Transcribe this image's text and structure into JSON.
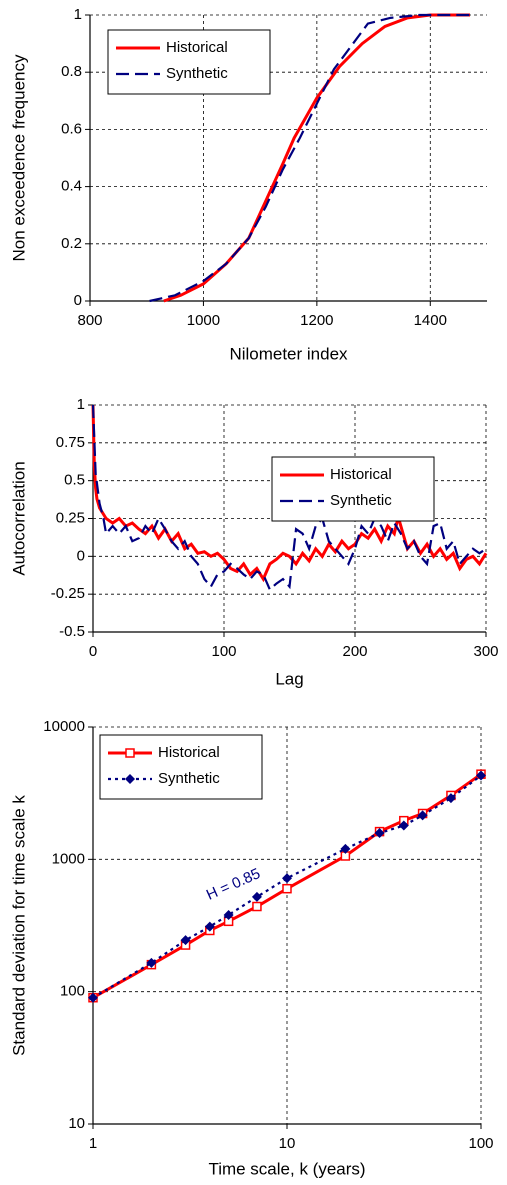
{
  "chart_data": [
    {
      "type": "line",
      "xlabel": "Nilometer index",
      "ylabel": "Non exceedence frequency",
      "xlim": [
        800,
        1500
      ],
      "xticks": [
        800,
        1000,
        1200,
        1400
      ],
      "ylim": [
        0,
        1
      ],
      "yticks": [
        0,
        0.2,
        0.4,
        0.6,
        0.8,
        1
      ],
      "grid": true,
      "legend": "upper left",
      "series": [
        {
          "name": "Historical",
          "color": "#ff0000",
          "line_style": "solid",
          "x": [
            930,
            960,
            1000,
            1040,
            1080,
            1110,
            1140,
            1160,
            1200,
            1240,
            1280,
            1320,
            1360,
            1400,
            1470
          ],
          "values": [
            0,
            0.02,
            0.06,
            0.13,
            0.22,
            0.35,
            0.48,
            0.57,
            0.71,
            0.82,
            0.9,
            0.96,
            0.99,
            1,
            1
          ]
        },
        {
          "name": "Synthetic",
          "color": "#000080",
          "line_style": "dashed",
          "x": [
            905,
            950,
            1000,
            1040,
            1080,
            1110,
            1140,
            1170,
            1200,
            1230,
            1260,
            1290,
            1330,
            1380,
            1470
          ],
          "values": [
            0,
            0.02,
            0.07,
            0.13,
            0.22,
            0.33,
            0.46,
            0.57,
            0.69,
            0.81,
            0.89,
            0.97,
            0.99,
            1,
            1
          ]
        }
      ]
    },
    {
      "type": "line",
      "xlabel": "Lag",
      "ylabel": "Autocorrelation",
      "xlim": [
        0,
        300
      ],
      "xticks": [
        0,
        100,
        200,
        300
      ],
      "ylim": [
        -0.5,
        1
      ],
      "yticks": [
        -0.5,
        -0.25,
        0,
        0.25,
        0.5,
        0.75,
        1
      ],
      "grid": true,
      "legend": "upper right",
      "series": [
        {
          "name": "Historical",
          "color": "#ff0000",
          "line_style": "solid",
          "x": [
            0,
            1,
            2,
            3,
            5,
            10,
            15,
            20,
            25,
            30,
            35,
            40,
            45,
            50,
            55,
            60,
            65,
            70,
            75,
            80,
            85,
            90,
            95,
            100,
            105,
            110,
            115,
            120,
            125,
            130,
            135,
            140,
            145,
            150,
            155,
            160,
            165,
            170,
            175,
            180,
            185,
            190,
            195,
            200,
            205,
            210,
            215,
            220,
            225,
            230,
            233,
            235,
            240,
            245,
            250,
            255,
            260,
            265,
            270,
            275,
            280,
            285,
            290,
            295,
            300
          ],
          "values": [
            1,
            0.6,
            0.45,
            0.38,
            0.32,
            0.25,
            0.22,
            0.25,
            0.2,
            0.22,
            0.18,
            0.15,
            0.2,
            0.12,
            0.18,
            0.1,
            0.15,
            0.05,
            0.08,
            0.02,
            0.03,
            0,
            0.02,
            -0.02,
            -0.08,
            -0.1,
            -0.05,
            -0.12,
            -0.08,
            -0.15,
            -0.05,
            -0.02,
            0.02,
            0,
            -0.05,
            0.02,
            -0.03,
            0.05,
            0,
            0.08,
            0.03,
            0.1,
            0.05,
            0.08,
            0.15,
            0.12,
            0.18,
            0.1,
            0.2,
            0.15,
            0.26,
            0.2,
            0.05,
            0.1,
            0.02,
            0.08,
            0,
            0.05,
            -0.02,
            0.02,
            -0.08,
            -0.02,
            0,
            -0.05,
            0.02
          ]
        },
        {
          "name": "Synthetic",
          "color": "#000080",
          "line_style": "dashed",
          "x": [
            0,
            2,
            5,
            8,
            10,
            15,
            20,
            25,
            30,
            35,
            40,
            45,
            50,
            55,
            60,
            65,
            70,
            75,
            80,
            85,
            90,
            95,
            100,
            105,
            110,
            115,
            120,
            125,
            130,
            135,
            140,
            145,
            150,
            155,
            160,
            165,
            170,
            175,
            180,
            185,
            190,
            195,
            200,
            205,
            210,
            215,
            220,
            225,
            230,
            235,
            240,
            245,
            250,
            255,
            260,
            265,
            270,
            275,
            280,
            285,
            290,
            295,
            300
          ],
          "values": [
            1,
            0.55,
            0.35,
            0.25,
            0.15,
            0.2,
            0.15,
            0.2,
            0.1,
            0.12,
            0.2,
            0.15,
            0.25,
            0.18,
            0.1,
            0.05,
            0.1,
            0,
            -0.05,
            -0.15,
            -0.2,
            -0.12,
            -0.1,
            -0.05,
            -0.08,
            -0.12,
            -0.15,
            -0.1,
            -0.12,
            -0.22,
            -0.18,
            -0.15,
            -0.2,
            0.18,
            0.15,
            0.05,
            0.2,
            0.25,
            0.1,
            0.05,
            0,
            -0.05,
            0.05,
            0.2,
            0.15,
            0.25,
            0.2,
            0.1,
            0.22,
            0.15,
            0.05,
            0.1,
            0,
            -0.05,
            0.2,
            0.22,
            0.05,
            0.1,
            -0.05,
            0,
            0.05,
            0.02,
            0.05
          ]
        }
      ]
    },
    {
      "type": "line",
      "xlabel": "Time scale, k (years)",
      "ylabel": "Standard deviation for time scale k",
      "xscale": "log",
      "yscale": "log",
      "xlim": [
        1,
        100
      ],
      "xticks": [
        1,
        10,
        100
      ],
      "ylim": [
        10,
        10000
      ],
      "yticks": [
        10,
        100,
        1000,
        10000
      ],
      "grid": true,
      "legend": "upper left",
      "annotation": "H = 0.85",
      "x": [
        1,
        2,
        3,
        4,
        5,
        7,
        10,
        20,
        30,
        40,
        50,
        70,
        100
      ],
      "series": [
        {
          "name": "Historical",
          "color": "#ff0000",
          "line_style": "solid",
          "marker": "open-square",
          "values": [
            90,
            160,
            225,
            290,
            340,
            440,
            600,
            1060,
            1620,
            1960,
            2220,
            3040,
            4400
          ]
        },
        {
          "name": "Synthetic",
          "color": "#000080",
          "line_style": "dotted",
          "marker": "diamond",
          "values": [
            90,
            165,
            245,
            310,
            380,
            520,
            720,
            1200,
            1580,
            1800,
            2150,
            2900,
            4300
          ]
        }
      ]
    }
  ]
}
